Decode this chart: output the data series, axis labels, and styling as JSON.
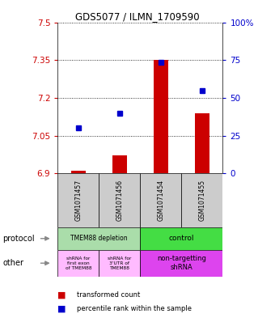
{
  "title": "GDS5077 / ILMN_1709590",
  "samples": [
    "GSM1071457",
    "GSM1071456",
    "GSM1071454",
    "GSM1071455"
  ],
  "bar_values": [
    6.91,
    6.97,
    7.35,
    7.14
  ],
  "dot_values": [
    7.08,
    7.14,
    7.34,
    7.23
  ],
  "ylim": [
    6.9,
    7.5
  ],
  "yticks": [
    6.9,
    7.05,
    7.2,
    7.35,
    7.5
  ],
  "ytick_labels_left": [
    "6.9",
    "7.05",
    "7.2",
    "7.35",
    "7.5"
  ],
  "ytick_labels_right": [
    "0",
    "25",
    "50",
    "75",
    "100%"
  ],
  "bar_color": "#cc0000",
  "dot_color": "#0000cc",
  "bg_color": "#cccccc",
  "prot_depletion_color": "#aaddaa",
  "prot_control_color": "#44dd44",
  "other_light_color": "#ffbbff",
  "other_dark_color": "#dd44ee",
  "legend_red": "transformed count",
  "legend_blue": "percentile rank within the sample"
}
